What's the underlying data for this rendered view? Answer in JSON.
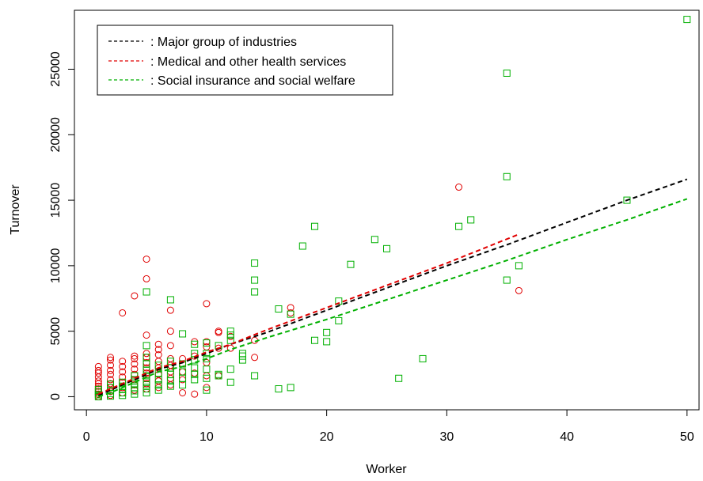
{
  "chart_data": {
    "type": "scatter",
    "title": "",
    "xlabel": "Worker",
    "ylabel": "Turnover",
    "xlim": [
      -1,
      51
    ],
    "ylim": [
      -1000,
      29500
    ],
    "x_ticks": [
      0,
      10,
      20,
      30,
      40,
      50
    ],
    "x_tick_labels": [
      "0",
      "10",
      "20",
      "30",
      "40",
      "50"
    ],
    "y_ticks": [
      0,
      5000,
      10000,
      15000,
      20000,
      25000
    ],
    "y_tick_labels": [
      "0",
      "5000",
      "10000",
      "15000",
      "20000",
      "25000"
    ],
    "grid": false,
    "legend": {
      "placement": "top-left",
      "entries": [
        {
          "label": ": Major group of industries",
          "color": "#000000",
          "style": "dashed"
        },
        {
          "label": ": Medical and other health services",
          "color": "#e00000",
          "style": "dashed"
        },
        {
          "label": ": Social insurance and social welfare",
          "color": "#00b000",
          "style": "dashed"
        }
      ]
    },
    "series": [
      {
        "kind": "points",
        "marker": "circle",
        "color": "#e00000",
        "points": [
          [
            1,
            0
          ],
          [
            1,
            200
          ],
          [
            1,
            400
          ],
          [
            1,
            600
          ],
          [
            1,
            800
          ],
          [
            1,
            1000
          ],
          [
            1,
            1200
          ],
          [
            1,
            1500
          ],
          [
            1,
            1800
          ],
          [
            1,
            2000
          ],
          [
            1,
            2300
          ],
          [
            2,
            100
          ],
          [
            2,
            400
          ],
          [
            2,
            700
          ],
          [
            2,
            1000
          ],
          [
            2,
            1300
          ],
          [
            2,
            1700
          ],
          [
            2,
            2000
          ],
          [
            2,
            2400
          ],
          [
            2,
            2800
          ],
          [
            2,
            3000
          ],
          [
            3,
            300
          ],
          [
            3,
            700
          ],
          [
            3,
            1100
          ],
          [
            3,
            1500
          ],
          [
            3,
            1900
          ],
          [
            3,
            2300
          ],
          [
            3,
            2700
          ],
          [
            3,
            6400
          ],
          [
            4,
            500
          ],
          [
            4,
            900
          ],
          [
            4,
            1300
          ],
          [
            4,
            1700
          ],
          [
            4,
            2100
          ],
          [
            4,
            2500
          ],
          [
            4,
            2900
          ],
          [
            4,
            3100
          ],
          [
            4,
            7700
          ],
          [
            5,
            600
          ],
          [
            5,
            1000
          ],
          [
            5,
            1400
          ],
          [
            5,
            1800
          ],
          [
            5,
            2200
          ],
          [
            5,
            2600
          ],
          [
            5,
            3000
          ],
          [
            5,
            3300
          ],
          [
            5,
            4700
          ],
          [
            5,
            9000
          ],
          [
            5,
            10500
          ],
          [
            6,
            700
          ],
          [
            6,
            1200
          ],
          [
            6,
            1700
          ],
          [
            6,
            2200
          ],
          [
            6,
            2700
          ],
          [
            6,
            3200
          ],
          [
            6,
            3600
          ],
          [
            6,
            4000
          ],
          [
            7,
            900
          ],
          [
            7,
            1400
          ],
          [
            7,
            1900
          ],
          [
            7,
            2400
          ],
          [
            7,
            2900
          ],
          [
            7,
            3900
          ],
          [
            7,
            5000
          ],
          [
            7,
            6600
          ],
          [
            8,
            300
          ],
          [
            8,
            1300
          ],
          [
            8,
            1900
          ],
          [
            8,
            2500
          ],
          [
            8,
            2900
          ],
          [
            9,
            200
          ],
          [
            9,
            1800
          ],
          [
            9,
            3100
          ],
          [
            9,
            4200
          ],
          [
            10,
            700
          ],
          [
            10,
            1600
          ],
          [
            10,
            2600
          ],
          [
            10,
            3800
          ],
          [
            10,
            4200
          ],
          [
            10,
            7100
          ],
          [
            11,
            1600
          ],
          [
            11,
            3700
          ],
          [
            11,
            4900
          ],
          [
            11,
            5000
          ],
          [
            12,
            3700
          ],
          [
            12,
            4600
          ],
          [
            14,
            3000
          ],
          [
            14,
            4300
          ],
          [
            17,
            6400
          ],
          [
            17,
            6800
          ],
          [
            31,
            16000
          ],
          [
            36,
            8100
          ]
        ]
      },
      {
        "kind": "points",
        "marker": "square",
        "color": "#00b000",
        "points": [
          [
            1,
            0
          ],
          [
            1,
            150
          ],
          [
            1,
            350
          ],
          [
            1,
            550
          ],
          [
            2,
            50
          ],
          [
            2,
            250
          ],
          [
            2,
            450
          ],
          [
            2,
            700
          ],
          [
            2,
            950
          ],
          [
            3,
            100
          ],
          [
            3,
            300
          ],
          [
            3,
            550
          ],
          [
            3,
            800
          ],
          [
            3,
            1100
          ],
          [
            4,
            200
          ],
          [
            4,
            450
          ],
          [
            4,
            700
          ],
          [
            4,
            1000
          ],
          [
            4,
            1300
          ],
          [
            4,
            1600
          ],
          [
            5,
            300
          ],
          [
            5,
            600
          ],
          [
            5,
            900
          ],
          [
            5,
            1200
          ],
          [
            5,
            1600
          ],
          [
            5,
            2000
          ],
          [
            5,
            2500
          ],
          [
            5,
            3000
          ],
          [
            5,
            3900
          ],
          [
            5,
            8000
          ],
          [
            6,
            500
          ],
          [
            6,
            900
          ],
          [
            6,
            1300
          ],
          [
            6,
            1800
          ],
          [
            6,
            2400
          ],
          [
            7,
            800
          ],
          [
            7,
            1200
          ],
          [
            7,
            1700
          ],
          [
            7,
            2200
          ],
          [
            7,
            2700
          ],
          [
            7,
            7400
          ],
          [
            8,
            900
          ],
          [
            8,
            1400
          ],
          [
            8,
            1900
          ],
          [
            8,
            2500
          ],
          [
            8,
            4800
          ],
          [
            9,
            1300
          ],
          [
            9,
            1700
          ],
          [
            9,
            2200
          ],
          [
            9,
            2800
          ],
          [
            9,
            3300
          ],
          [
            9,
            4000
          ],
          [
            10,
            500
          ],
          [
            10,
            1400
          ],
          [
            10,
            2100
          ],
          [
            10,
            2900
          ],
          [
            10,
            3300
          ],
          [
            10,
            4100
          ],
          [
            11,
            1600
          ],
          [
            11,
            1700
          ],
          [
            11,
            3900
          ],
          [
            12,
            1100
          ],
          [
            12,
            2100
          ],
          [
            12,
            4300
          ],
          [
            12,
            4700
          ],
          [
            12,
            5000
          ],
          [
            13,
            2800
          ],
          [
            13,
            3100
          ],
          [
            13,
            3300
          ],
          [
            14,
            1600
          ],
          [
            14,
            8000
          ],
          [
            14,
            8900
          ],
          [
            14,
            10200
          ],
          [
            16,
            600
          ],
          [
            16,
            6700
          ],
          [
            17,
            700
          ],
          [
            17,
            6300
          ],
          [
            18,
            11500
          ],
          [
            19,
            4300
          ],
          [
            19,
            13000
          ],
          [
            20,
            4200
          ],
          [
            20,
            4900
          ],
          [
            21,
            5800
          ],
          [
            21,
            7300
          ],
          [
            22,
            10100
          ],
          [
            24,
            12000
          ],
          [
            25,
            11300
          ],
          [
            26,
            1400
          ],
          [
            28,
            2900
          ],
          [
            31,
            13000
          ],
          [
            32,
            13500
          ],
          [
            35,
            8900
          ],
          [
            35,
            16800
          ],
          [
            35,
            24700
          ],
          [
            36,
            10000
          ],
          [
            45,
            15000
          ],
          [
            50,
            28800
          ]
        ]
      },
      {
        "name": ": Major group of industries",
        "kind": "line",
        "style": "dashed",
        "color": "#000000",
        "x": [
          1,
          2,
          3,
          4,
          5,
          6,
          8,
          10,
          12,
          15,
          20,
          25,
          30,
          35,
          40,
          45,
          50
        ],
        "values": [
          100,
          500,
          900,
          1300,
          1700,
          2100,
          2600,
          3300,
          4000,
          4900,
          6600,
          8300,
          10000,
          11600,
          13300,
          15000,
          16600
        ]
      },
      {
        "name": ": Medical and other health services",
        "kind": "line",
        "style": "dashed",
        "color": "#e00000",
        "x": [
          1,
          2,
          3,
          4,
          5,
          6,
          8,
          10,
          12,
          15,
          20,
          25,
          30,
          36
        ],
        "values": [
          200,
          600,
          1000,
          1400,
          1800,
          2200,
          2700,
          3400,
          4000,
          5100,
          6800,
          8500,
          10200,
          12400
        ]
      },
      {
        "name": ": Social insurance and social welfare",
        "kind": "line",
        "style": "dashed",
        "color": "#00b000",
        "x": [
          1,
          2,
          3,
          4,
          5,
          6,
          8,
          10,
          12,
          15,
          20,
          25,
          30,
          35,
          40,
          45,
          50
        ],
        "values": [
          0,
          300,
          700,
          1100,
          1500,
          1900,
          2300,
          2900,
          3600,
          4500,
          5900,
          7400,
          8900,
          10400,
          12000,
          13500,
          15100
        ]
      }
    ]
  }
}
